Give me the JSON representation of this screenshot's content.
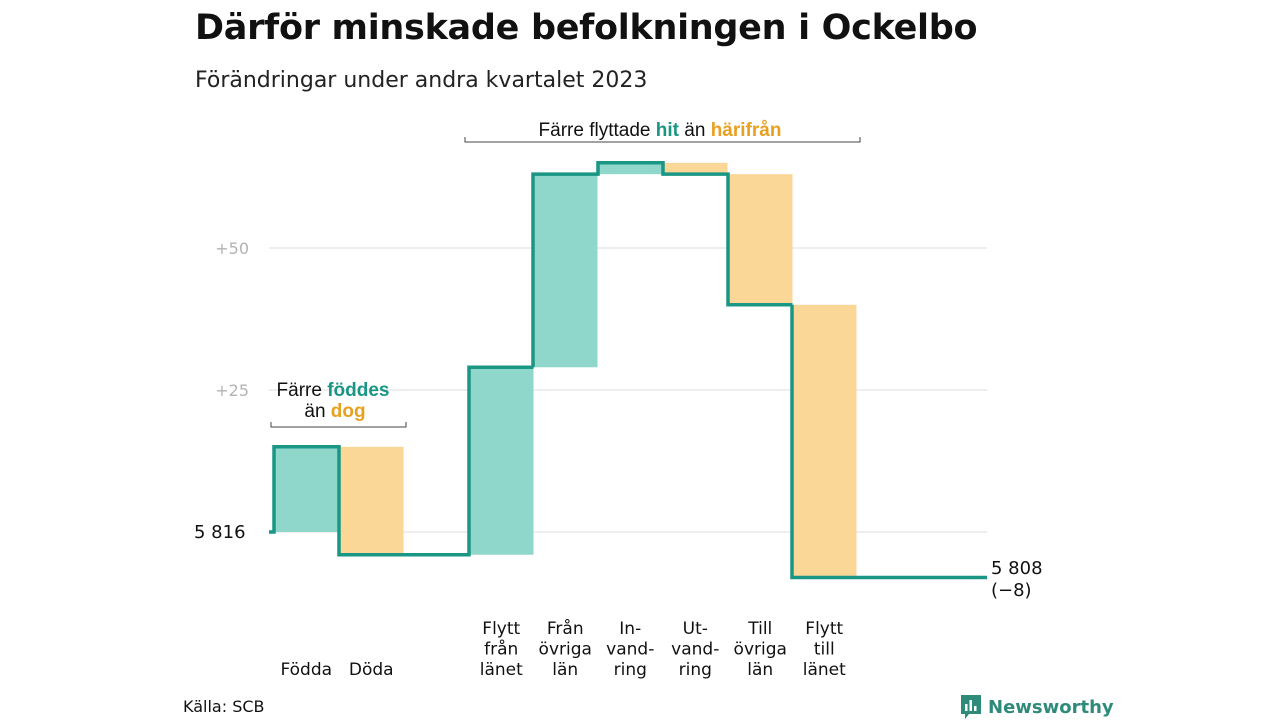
{
  "title": "Därför minskade befolkningen i Ockelbo",
  "subtitle": "Förändringar under andra kvartalet 2023",
  "source": "Källa: SCB",
  "brand": "Newsworthy",
  "colors": {
    "positive_fill": "#8fd6cb",
    "negative_fill": "#fbd797",
    "line": "#1a9684",
    "accent_teal": "#1a9684",
    "accent_orange": "#e8a020",
    "grid": "#e3e3e3",
    "tick_text": "#b3b3b3"
  },
  "annotations": {
    "births_deaths": {
      "line1_a": "Färre ",
      "line1_b": "föddes",
      "line2_a": "än ",
      "line2_b": "dog"
    },
    "moves": {
      "a": "Färre flyttade ",
      "b": "hit",
      "c": " än ",
      "d": "härifrån"
    }
  },
  "chart_data": {
    "type": "waterfall",
    "start_value": 5816,
    "start_label": "5  816",
    "end_value": 5808,
    "end_label_line1": "5 808",
    "end_label_line2": "(−8)",
    "y_ticks": [
      {
        "label": "+50",
        "value": 50
      },
      {
        "label": "+25",
        "value": 25
      }
    ],
    "y_range": [
      -8,
      65
    ],
    "grid": true,
    "steps": [
      {
        "label_lines": [
          "Födda"
        ],
        "change": 15,
        "sign": "positive"
      },
      {
        "label_lines": [
          "Döda"
        ],
        "change": -19,
        "sign": "negative"
      },
      {
        "label_lines": [
          "Flytt",
          "från",
          "länet"
        ],
        "change": 33,
        "sign": "positive"
      },
      {
        "label_lines": [
          "Från",
          "övriga",
          "län"
        ],
        "change": 34,
        "sign": "positive"
      },
      {
        "label_lines": [
          "In-",
          "vand-",
          "ring"
        ],
        "change": 2,
        "sign": "positive"
      },
      {
        "label_lines": [
          "Ut-",
          "vand-",
          "ring"
        ],
        "change": -2,
        "sign": "negative"
      },
      {
        "label_lines": [
          "Till",
          "övriga",
          "län"
        ],
        "change": -23,
        "sign": "negative"
      },
      {
        "label_lines": [
          "Flytt",
          "till",
          "länet"
        ],
        "change": -48,
        "sign": "negative"
      }
    ]
  }
}
